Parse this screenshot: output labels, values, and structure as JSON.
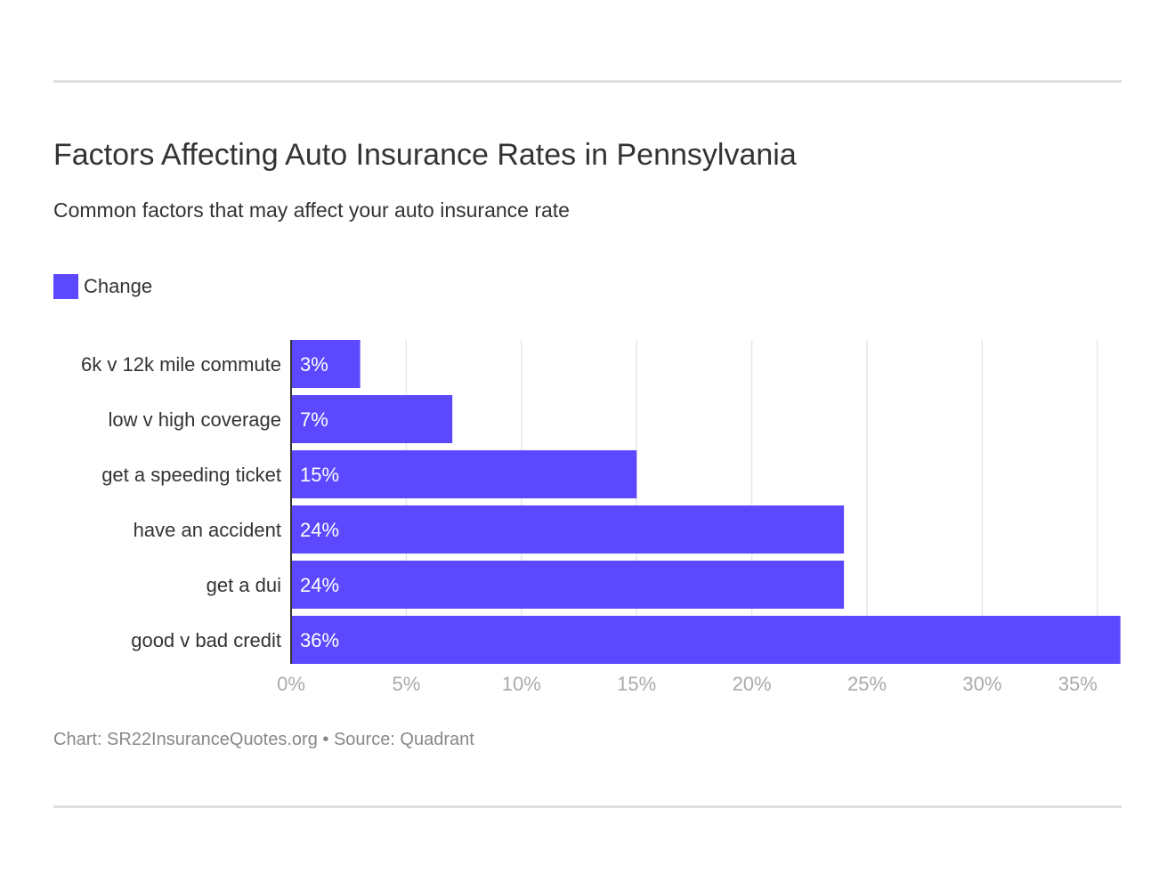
{
  "chart_data": {
    "type": "bar",
    "orientation": "horizontal",
    "title": "Factors Affecting Auto Insurance Rates in Pennsylvania",
    "subtitle": "Common factors that may affect your auto insurance rate",
    "categories": [
      "6k v 12k mile commute",
      "low v high coverage",
      "get a speeding ticket",
      "have an accident",
      "get a dui",
      "good v bad credit"
    ],
    "series": [
      {
        "name": "Change",
        "values": [
          3,
          7,
          15,
          24,
          24,
          36
        ],
        "labels": [
          "3%",
          "7%",
          "15%",
          "24%",
          "24%",
          "36%"
        ]
      }
    ],
    "xlim": [
      0,
      36
    ],
    "xticks": [
      0,
      5,
      10,
      15,
      20,
      25,
      30,
      35
    ],
    "xtick_labels": [
      "0%",
      "5%",
      "10%",
      "15%",
      "20%",
      "25%",
      "30%",
      "35%"
    ],
    "grid": true,
    "legend_position": "top-left",
    "colors": {
      "bar": "#5b48ff",
      "grid": "#e6e6e6",
      "axis": "#333333",
      "tick": "#aaaaaa"
    }
  },
  "footer": "Chart: SR22InsuranceQuotes.org • Source: Quadrant"
}
